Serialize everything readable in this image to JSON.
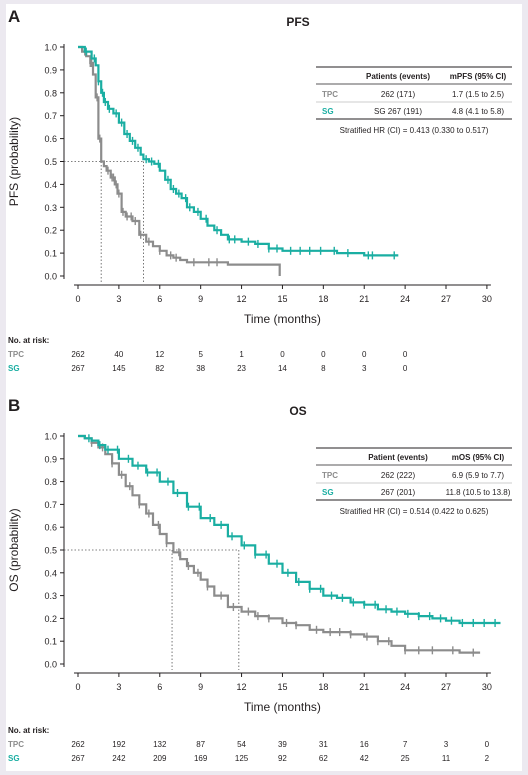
{
  "colors": {
    "tpc": "#8c8c8c",
    "sg": "#1aaea2",
    "text": "#231f20"
  },
  "chart_data": [
    {
      "type": "line",
      "panel_letter": "A",
      "title": "PFS",
      "xlabel": "Time (months)",
      "ylabel": "PFS (probability)",
      "xlim": [
        0,
        30
      ],
      "ylim": [
        0,
        1.0
      ],
      "xticks": [
        "0",
        "3",
        "6",
        "9",
        "12",
        "15",
        "18",
        "21",
        "24",
        "27",
        "30"
      ],
      "yticks": [
        "0.0",
        "0.1",
        "0.2",
        "0.3",
        "0.4",
        "0.5",
        "0.6",
        "0.7",
        "0.8",
        "0.9",
        "1.0"
      ],
      "median_line_y": 0.5,
      "medians": [
        1.7,
        4.8
      ],
      "series": [
        {
          "name": "TPC",
          "color": "#8c8c8c",
          "x": [
            0,
            0.3,
            0.6,
            0.9,
            1.1,
            1.3,
            1.5,
            1.7,
            1.9,
            2.1,
            2.4,
            2.7,
            2.9,
            3.2,
            3.5,
            4.0,
            4.5,
            5.0,
            5.5,
            6.0,
            6.5,
            7.0,
            7.5,
            8.0,
            9.0,
            10.0,
            11.0,
            12.0,
            13.0,
            14.0,
            14.8
          ],
          "y": [
            1.0,
            0.98,
            0.96,
            0.93,
            0.88,
            0.78,
            0.6,
            0.5,
            0.48,
            0.46,
            0.43,
            0.4,
            0.36,
            0.28,
            0.26,
            0.24,
            0.18,
            0.15,
            0.13,
            0.11,
            0.09,
            0.08,
            0.07,
            0.06,
            0.06,
            0.06,
            0.05,
            0.05,
            0.05,
            0.05,
            0.0
          ],
          "censor_x": [
            0.5,
            0.9,
            1.0,
            1.4,
            1.6,
            2.2,
            2.5,
            2.6,
            2.8,
            3.0,
            3.3,
            3.6,
            3.9,
            4.2,
            4.6,
            5.2,
            6.0,
            6.8,
            7.2,
            8.5,
            9.6,
            10.2
          ]
        },
        {
          "name": "SG",
          "color": "#1aaea2",
          "x": [
            0,
            0.5,
            1.0,
            1.3,
            1.5,
            1.7,
            1.9,
            2.2,
            2.6,
            3.0,
            3.4,
            3.8,
            4.2,
            4.6,
            4.8,
            5.2,
            5.6,
            6.0,
            6.4,
            6.8,
            7.2,
            7.6,
            8.0,
            8.5,
            9.0,
            9.5,
            10.0,
            10.5,
            11.0,
            12.0,
            13.0,
            14.0,
            15.0,
            17.0,
            19.0,
            21.0,
            23.5
          ],
          "y": [
            1.0,
            0.98,
            0.95,
            0.92,
            0.85,
            0.8,
            0.76,
            0.73,
            0.71,
            0.67,
            0.62,
            0.59,
            0.56,
            0.53,
            0.51,
            0.5,
            0.49,
            0.46,
            0.42,
            0.38,
            0.36,
            0.34,
            0.3,
            0.28,
            0.25,
            0.22,
            0.2,
            0.18,
            0.16,
            0.15,
            0.14,
            0.12,
            0.11,
            0.11,
            0.1,
            0.09,
            0.09
          ],
          "censor_x": [
            0.6,
            1.2,
            1.5,
            1.8,
            2.0,
            2.3,
            2.8,
            3.2,
            3.6,
            4.0,
            4.4,
            5.0,
            5.4,
            5.9,
            6.6,
            7.0,
            7.4,
            7.9,
            8.2,
            8.8,
            9.4,
            10.2,
            11.1,
            11.5,
            12.5,
            13.2,
            14.0,
            14.6,
            15.6,
            16.3,
            17.0,
            17.8,
            18.8,
            19.8,
            21.3,
            21.6,
            23.2
          ]
        }
      ],
      "legend_table": {
        "headers": [
          "",
          "Patients (events)",
          "mPFS (95% CI)"
        ],
        "rows": [
          {
            "group": "TPC",
            "events": "262 (171)",
            "median": "1.7 (1.5 to 2.5)"
          },
          {
            "group": "SG",
            "events": "SG 267 (191)",
            "median": "4.8 (4.1 to 5.8)"
          }
        ],
        "hr": "Stratified HR (CI) = 0.413 (0.330 to 0.517)"
      },
      "risk": {
        "title": "No. at risk:",
        "rows": [
          {
            "group": "TPC",
            "values": [
              "262",
              "40",
              "12",
              "5",
              "1",
              "0",
              "0",
              "0",
              "0"
            ]
          },
          {
            "group": "SG",
            "values": [
              "267",
              "145",
              "82",
              "38",
              "23",
              "14",
              "8",
              "3",
              "0"
            ]
          }
        ]
      }
    },
    {
      "type": "line",
      "panel_letter": "B",
      "title": "OS",
      "xlabel": "Time (months)",
      "ylabel": "OS (probability)",
      "xlim": [
        0,
        30
      ],
      "ylim": [
        0,
        1.0
      ],
      "xticks": [
        "0",
        "3",
        "6",
        "9",
        "12",
        "15",
        "18",
        "21",
        "24",
        "27",
        "30"
      ],
      "yticks": [
        "0.0",
        "0.1",
        "0.2",
        "0.3",
        "0.4",
        "0.5",
        "0.6",
        "0.7",
        "0.8",
        "0.9",
        "1.0"
      ],
      "median_line_y": 0.5,
      "medians": [
        6.9,
        11.8
      ],
      "series": [
        {
          "name": "TPC",
          "color": "#8c8c8c",
          "x": [
            0,
            0.5,
            1.0,
            1.5,
            2.0,
            2.5,
            3.0,
            3.5,
            4.0,
            4.5,
            5.0,
            5.5,
            6.0,
            6.5,
            7.0,
            7.5,
            8.0,
            8.5,
            9.0,
            9.5,
            10.0,
            11.0,
            12.0,
            13.0,
            14.0,
            15.0,
            16.0,
            17.0,
            18.0,
            19.0,
            20.0,
            21.0,
            22.0,
            23.0,
            24.0,
            26.0,
            28.0,
            29.5
          ],
          "y": [
            1.0,
            0.99,
            0.97,
            0.95,
            0.92,
            0.88,
            0.83,
            0.78,
            0.74,
            0.7,
            0.66,
            0.61,
            0.57,
            0.53,
            0.49,
            0.46,
            0.43,
            0.4,
            0.37,
            0.34,
            0.3,
            0.25,
            0.23,
            0.21,
            0.2,
            0.18,
            0.17,
            0.15,
            0.14,
            0.14,
            0.13,
            0.12,
            0.1,
            0.08,
            0.06,
            0.06,
            0.05,
            0.05
          ],
          "censor_x": [
            1.0,
            1.8,
            2.5,
            3.2,
            3.8,
            4.5,
            5.2,
            5.9,
            6.5,
            7.4,
            8.1,
            8.8,
            9.5,
            10.5,
            11.4,
            12.5,
            13.2,
            14.0,
            15.3,
            16.0,
            17.5,
            18.5,
            19.2,
            20.0,
            21.2,
            22.0,
            22.8,
            24.0,
            25.0,
            26.0,
            27.5,
            29.0
          ]
        },
        {
          "name": "SG",
          "color": "#1aaea2",
          "x": [
            0,
            0.5,
            1.0,
            1.5,
            2.0,
            3.0,
            4.0,
            5.0,
            6.0,
            7.0,
            8.0,
            9.0,
            10.0,
            11.0,
            12.0,
            13.0,
            14.0,
            15.0,
            16.0,
            17.0,
            18.0,
            19.0,
            20.0,
            21.0,
            22.0,
            23.0,
            24.0,
            25.0,
            26.0,
            27.0,
            28.0,
            29.0,
            31.0
          ],
          "y": [
            1.0,
            0.99,
            0.98,
            0.96,
            0.94,
            0.9,
            0.87,
            0.84,
            0.8,
            0.75,
            0.69,
            0.64,
            0.61,
            0.56,
            0.52,
            0.48,
            0.44,
            0.4,
            0.36,
            0.33,
            0.3,
            0.29,
            0.27,
            0.26,
            0.24,
            0.23,
            0.22,
            0.21,
            0.2,
            0.19,
            0.18,
            0.18,
            0.18
          ],
          "censor_x": [
            0.8,
            1.6,
            2.2,
            2.9,
            3.7,
            4.4,
            5.1,
            5.8,
            6.6,
            7.3,
            8.1,
            8.9,
            9.7,
            10.5,
            11.3,
            12.2,
            13.0,
            13.8,
            14.6,
            15.4,
            16.2,
            17.0,
            17.8,
            18.6,
            19.4,
            20.2,
            21.0,
            21.8,
            22.6,
            23.4,
            24.2,
            25.0,
            25.8,
            26.6,
            27.4,
            28.2,
            29.0,
            29.8,
            30.6
          ]
        }
      ],
      "legend_table": {
        "headers": [
          "",
          "Patient (events)",
          "mOS (95% CI)"
        ],
        "rows": [
          {
            "group": "TPC",
            "events": "262 (222)",
            "median": "6.9 (5.9 to 7.7)"
          },
          {
            "group": "SG",
            "events": "267 (201)",
            "median": "11.8 (10.5 to 13.8)"
          }
        ],
        "hr": "Stratified HR (CI) = 0.514 (0.422 to 0.625)"
      },
      "risk": {
        "title": "No. at risk:",
        "rows": [
          {
            "group": "TPC",
            "values": [
              "262",
              "192",
              "132",
              "87",
              "54",
              "39",
              "31",
              "16",
              "7",
              "3",
              "0"
            ]
          },
          {
            "group": "SG",
            "values": [
              "267",
              "242",
              "209",
              "169",
              "125",
              "92",
              "62",
              "42",
              "25",
              "11",
              "2"
            ]
          }
        ]
      }
    }
  ]
}
